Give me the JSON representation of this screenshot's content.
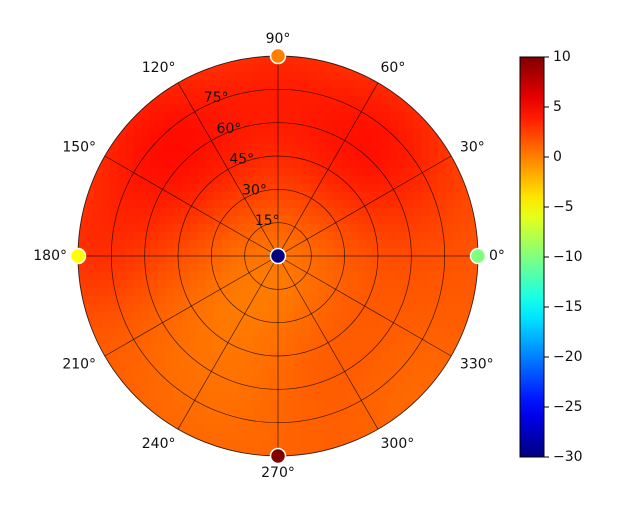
{
  "chart_data": {
    "type": "heatmap",
    "projection": "polar",
    "theta_ticks": [
      0,
      30,
      60,
      90,
      120,
      150,
      180,
      210,
      240,
      270,
      300,
      330
    ],
    "theta_tick_labels": [
      "0°",
      "30°",
      "60°",
      "90°",
      "120°",
      "150°",
      "180°",
      "210°",
      "240°",
      "270°",
      "300°",
      "330°"
    ],
    "r_ticks": [
      15,
      30,
      45,
      60,
      75
    ],
    "r_tick_labels": [
      "15°",
      "30°",
      "45°",
      "60°",
      "75°"
    ],
    "r_max": 90,
    "r_label_angle": 112.5,
    "grid": true,
    "colorbar": {
      "range": [
        -30,
        10
      ],
      "ticks": [
        10,
        5,
        0,
        -5,
        -10,
        -15,
        -20,
        -25,
        -30
      ],
      "tick_labels": [
        "10",
        "5",
        "0",
        "−5",
        "−10",
        "−15",
        "−20",
        "−25",
        "−30"
      ],
      "colormap": "jet",
      "placement": "right"
    },
    "field": {
      "baseline": 1.5,
      "components": [
        {
          "theta": 135,
          "r": 65,
          "amplitude": 3.2,
          "spread": 32
        },
        {
          "theta": 50,
          "r": 62,
          "amplitude": 3.0,
          "spread": 30
        },
        {
          "theta": 180,
          "r": 85,
          "amplitude": 1.2,
          "spread": 20
        },
        {
          "theta": 90,
          "r": 85,
          "amplitude": 1.0,
          "spread": 20
        },
        {
          "theta": 300,
          "r": 45,
          "amplitude": 1.0,
          "spread": 28
        },
        {
          "theta": 0,
          "r": 0,
          "amplitude": -1.8,
          "spread": 30
        },
        {
          "theta": 250,
          "r": 55,
          "amplitude": -1.0,
          "spread": 35
        },
        {
          "theta": 315,
          "r": 85,
          "amplitude": -0.8,
          "spread": 25
        }
      ]
    },
    "markers": [
      {
        "theta": 0,
        "r": 0,
        "value": -30
      },
      {
        "theta": 0,
        "r": 90,
        "value": -10
      },
      {
        "theta": 90,
        "r": 90,
        "value": 0
      },
      {
        "theta": 180,
        "r": 90,
        "value": -5
      },
      {
        "theta": 270,
        "r": 90,
        "value": 10
      }
    ]
  }
}
